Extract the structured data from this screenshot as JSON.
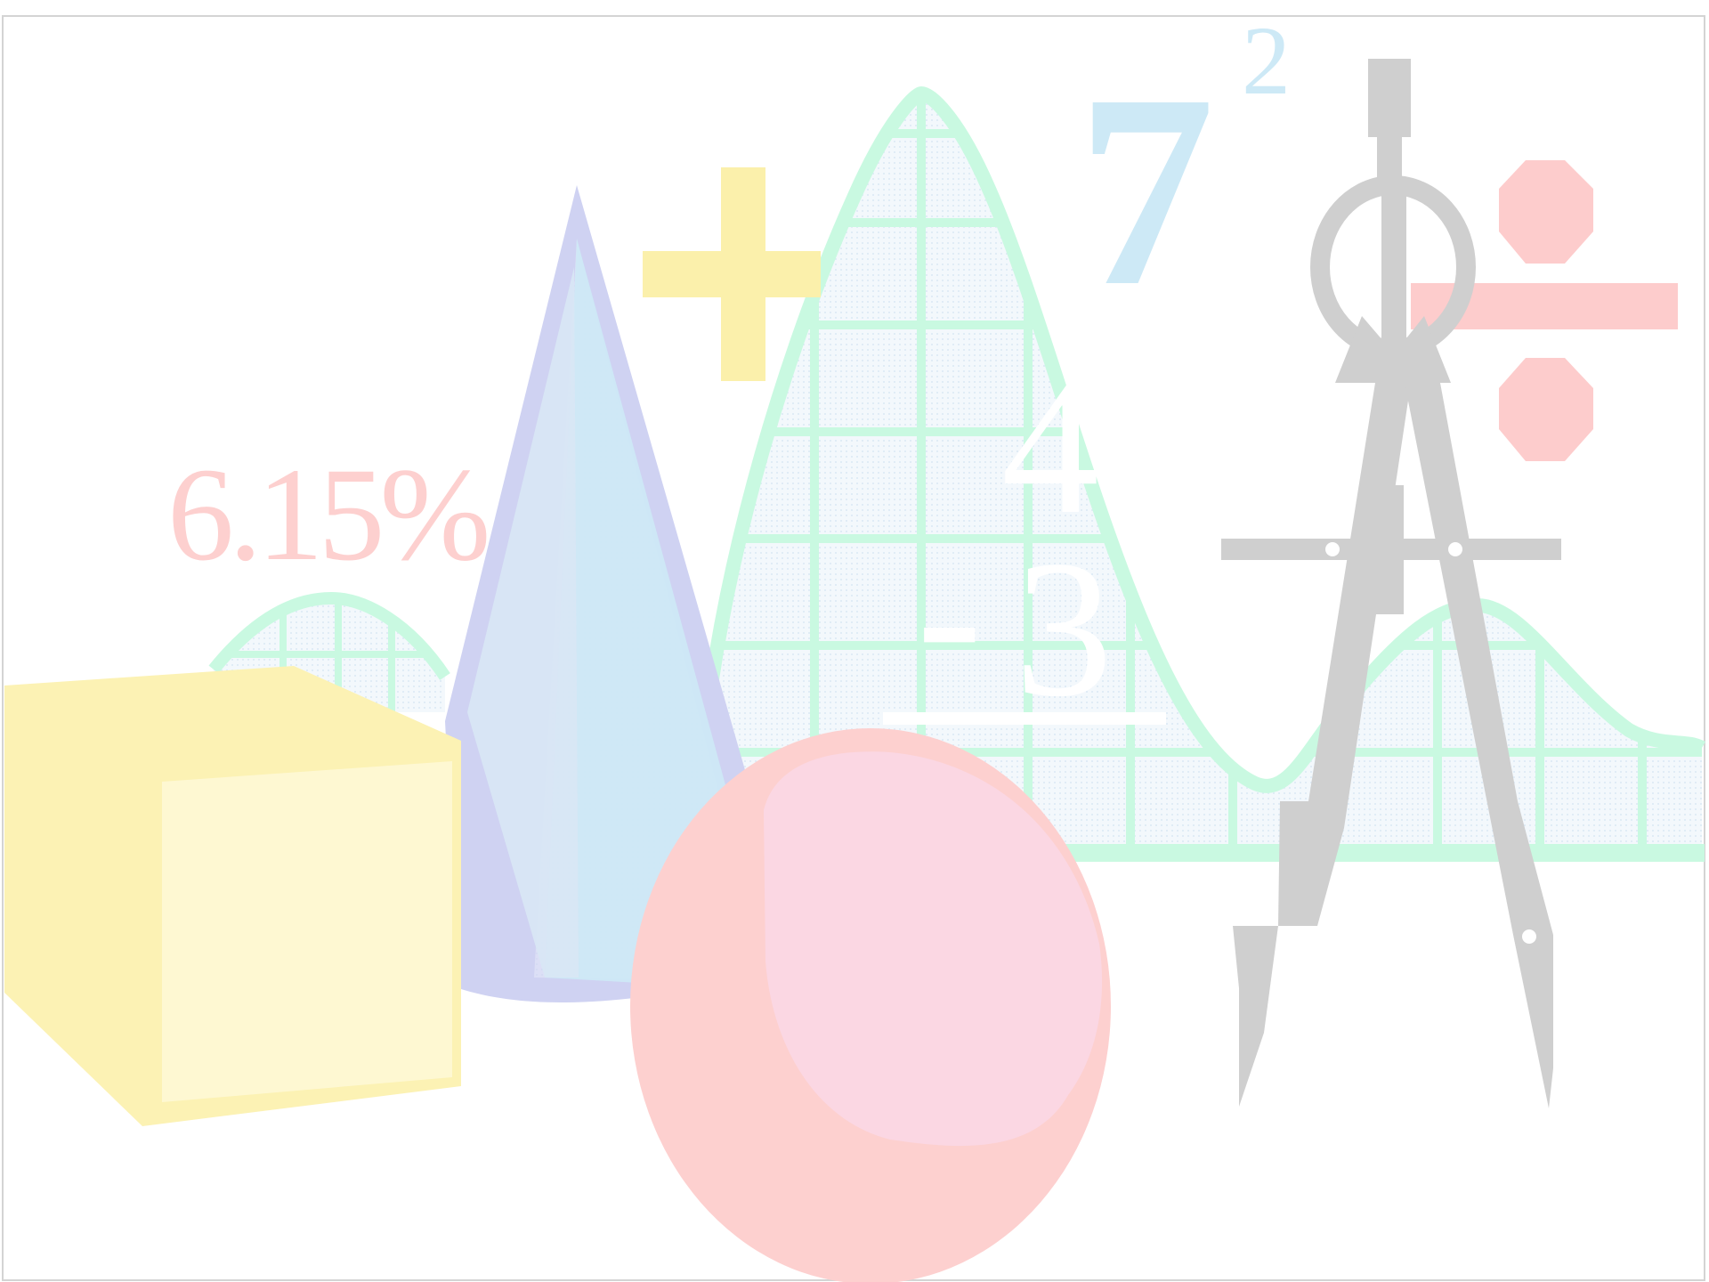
{
  "colors": {
    "background": "#ffffff",
    "frame": "#d4d4d4",
    "curve": "#c9f9e1",
    "curve_grid_fill": "#eef4fb",
    "cone_outer": "#cfd2f2",
    "cone_inner": "#cde9f6",
    "cube": "#fcf2b4",
    "cube_front": "#fef8d2",
    "sphere": "#fdd0cf",
    "sphere_highlight": "#fbd7e3",
    "plus": "#fbf0ab",
    "divide": "#fdcccc",
    "seven": "#cde9f6",
    "percent_text": "#fdd0cf",
    "compass": "#cfcfcf",
    "fraction_text": "#ffffff"
  },
  "texts": {
    "percent": "6.15%",
    "seven": "7",
    "exponent": "2",
    "numerator": "4",
    "minus": "-",
    "denominator": "3"
  },
  "icons": {
    "plus": "plus-sign-icon",
    "divide": "division-sign-icon",
    "compass": "drafting-compass-icon",
    "cube": "cube-icon",
    "cone": "cone-icon",
    "sphere": "sphere-icon"
  }
}
